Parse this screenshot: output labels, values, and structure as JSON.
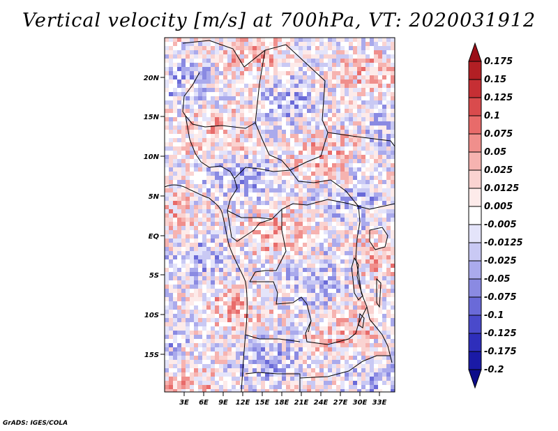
{
  "title": "Vertical velocity [m/s] at 700hPa, VT: 2020031912",
  "footer": "GrADS: IGES/COLA",
  "map": {
    "lat_labels": [
      "20N",
      "15N",
      "10N",
      "5N",
      "EQ",
      "5S",
      "10S",
      "15S"
    ],
    "lon_labels": [
      "3E",
      "6E",
      "9E",
      "12E",
      "15E",
      "18E",
      "21E",
      "24E",
      "27E",
      "30E",
      "33E"
    ],
    "colors": {
      "land_border": "#000000",
      "positive": "#d6494f",
      "negative": "#6a6ae6",
      "neutral": "#ffffff"
    }
  },
  "colorbar": {
    "levels": [
      "0.175",
      "0.15",
      "0.125",
      "0.1",
      "0.075",
      "0.05",
      "0.025",
      "0.0125",
      "0.005",
      "-0.005",
      "-0.0125",
      "-0.025",
      "-0.05",
      "-0.075",
      "-0.1",
      "-0.125",
      "-0.175",
      "-0.2"
    ],
    "colors": [
      "#9b0f18",
      "#b21f24",
      "#c62f34",
      "#d94b4d",
      "#e86b6a",
      "#f08f8c",
      "#f6b3b0",
      "#fad3d1",
      "#fdebea",
      "#ffffff",
      "#e4e4fa",
      "#c9c9f4",
      "#aaaaec",
      "#8a8ae2",
      "#6a6ad8",
      "#4a4acb",
      "#2e2ebb",
      "#1a1aa6",
      "#0c0c8a"
    ]
  }
}
